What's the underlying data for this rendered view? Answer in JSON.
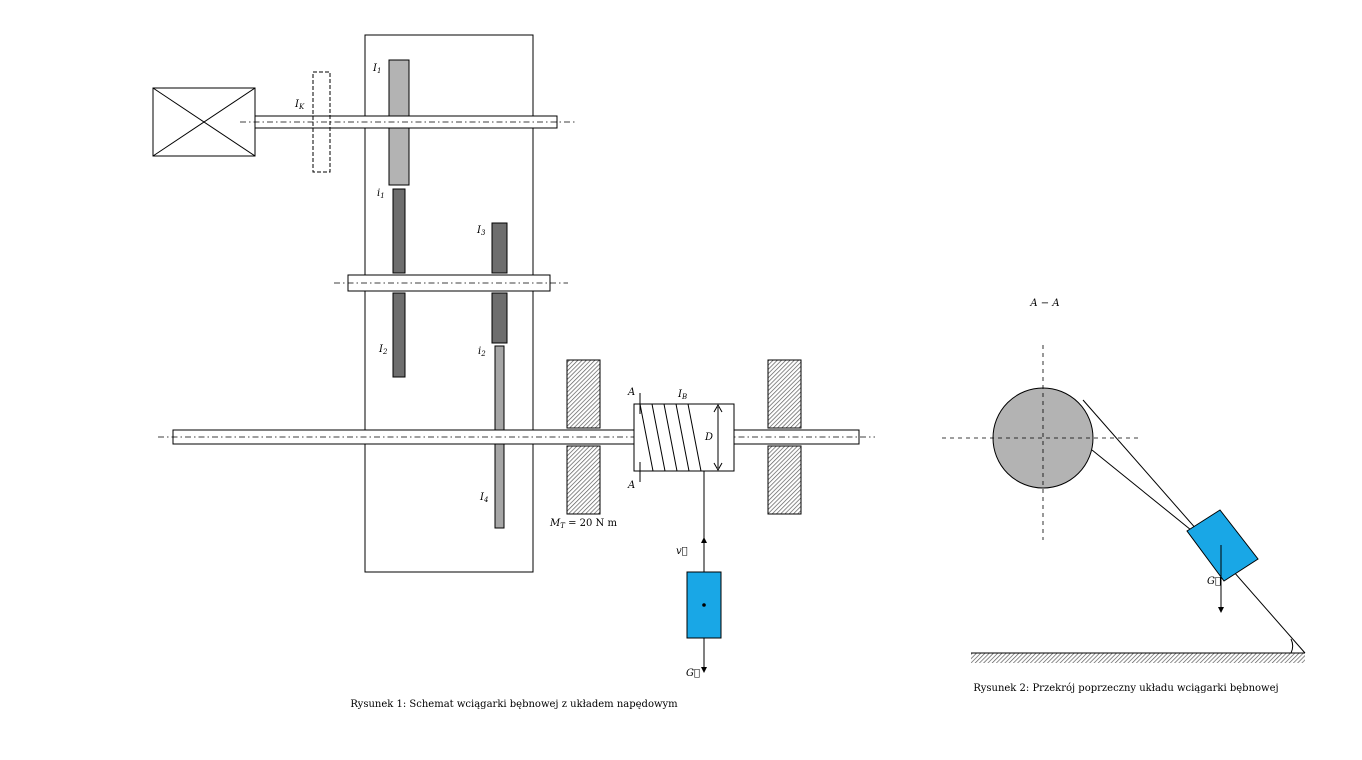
{
  "figure1": {
    "caption": "Rysunek 1: Schemat wciągarki bębnowej z układem napędowym",
    "labels": {
      "IK": "I",
      "IK_sub": "K",
      "I1": "I",
      "I1_sub": "1",
      "i1": "i",
      "i1_sub": "1",
      "I3": "I",
      "I3_sub": "3",
      "I2": "I",
      "I2_sub": "2",
      "i2": "i",
      "i2_sub": "2",
      "IB": "I",
      "IB_sub": "B",
      "I4": "I",
      "I4_sub": "4",
      "D": "D",
      "A_top": "A",
      "A_bottom": "A",
      "MT": "M",
      "MT_sub": "T",
      "MT_value": " = 20 N m",
      "v": "v⃗",
      "G": "G⃗"
    },
    "colors": {
      "gear_light": "#b3b3b3",
      "gear_dark": "#6e6e6e",
      "gear_lighter": "#a6a6a6",
      "load": "#19a7e6",
      "bearing": "#6b6b6b"
    }
  },
  "figure2": {
    "caption": "Rysunek 2: Przekrój poprzeczny układu wciągarki bębnowej",
    "section_label": "A − A",
    "G": "G⃗",
    "colors": {
      "drum": "#b3b3b3",
      "load": "#19a7e6"
    }
  }
}
